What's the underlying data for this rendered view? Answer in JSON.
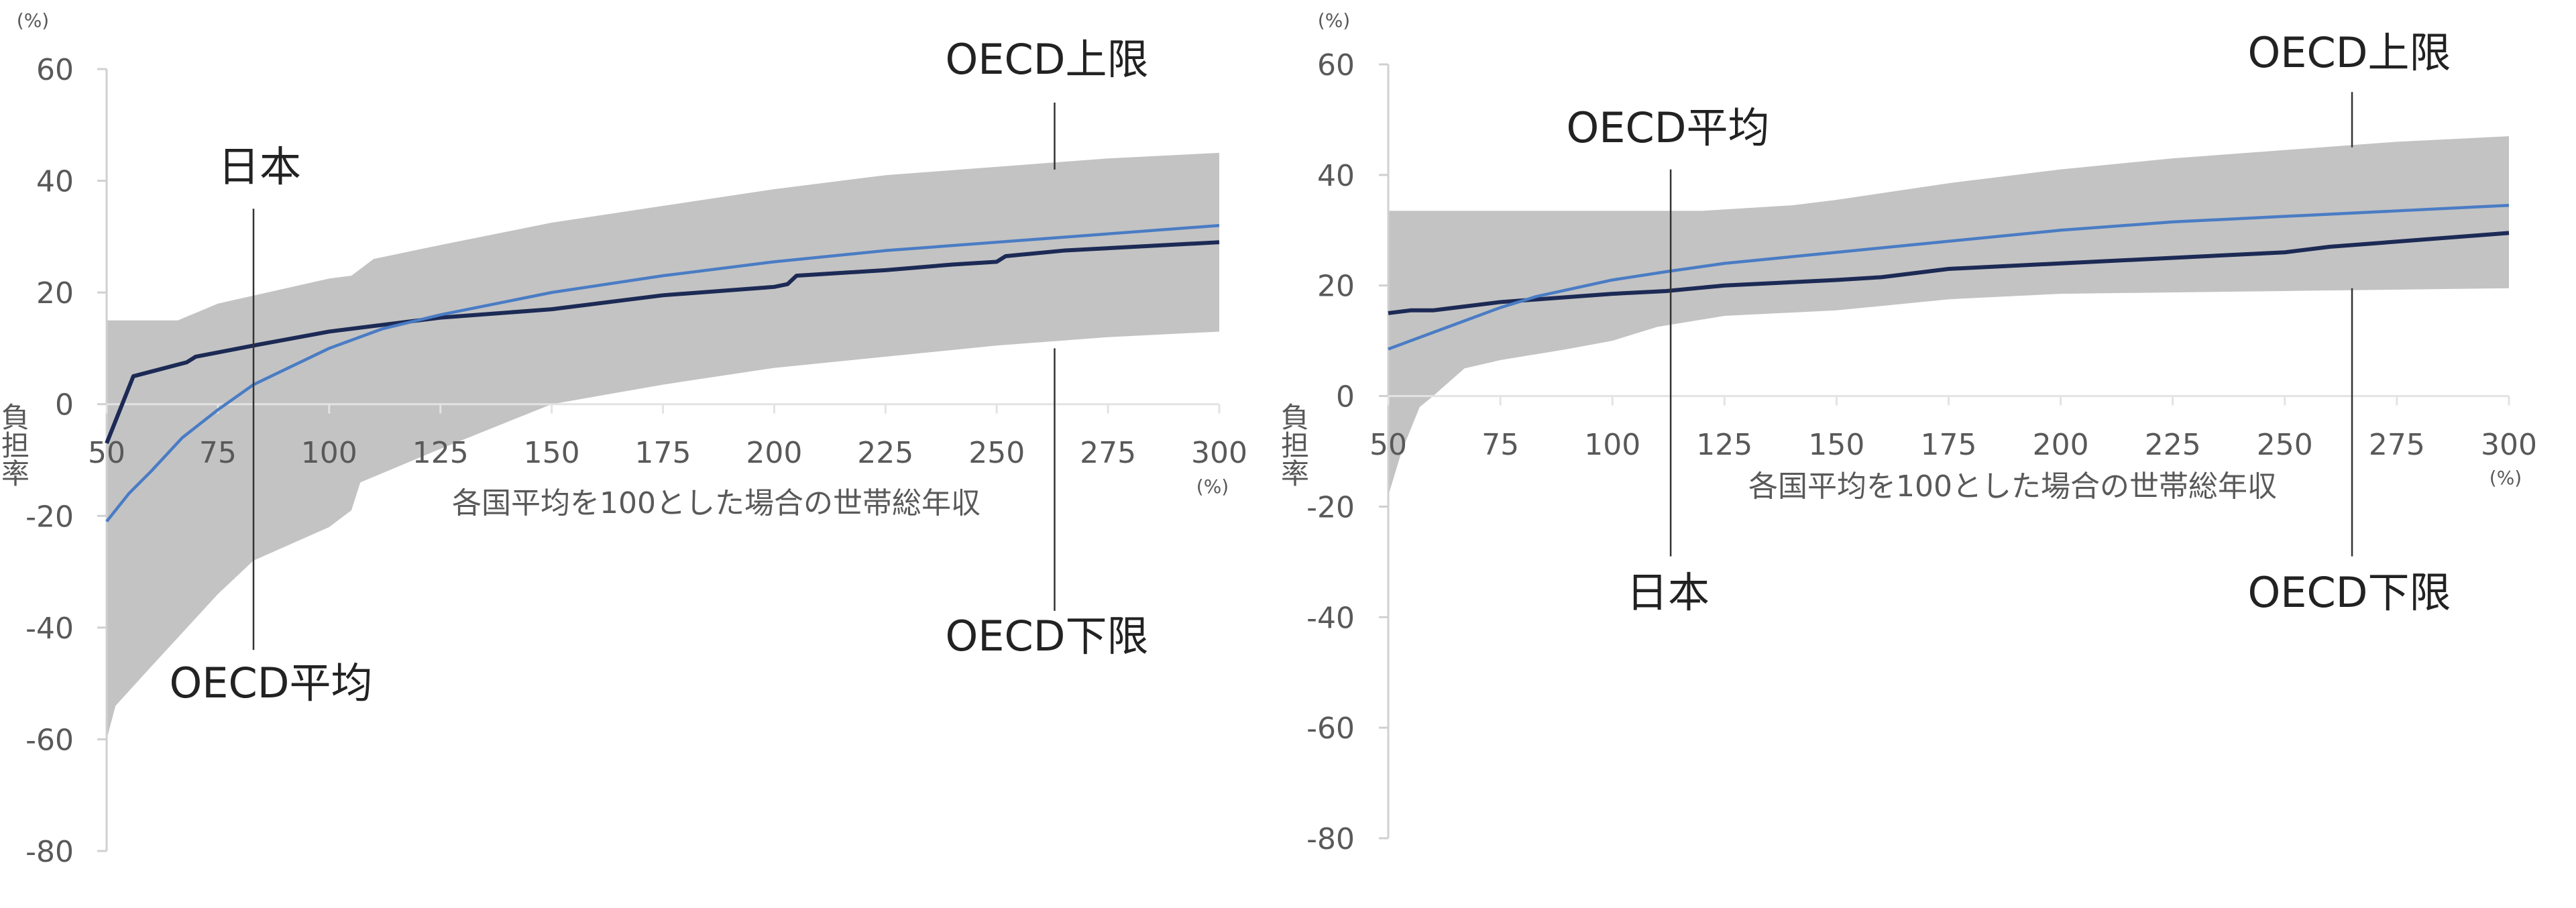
{
  "chart_data": [
    {
      "type": "area",
      "xlabel": "各国平均を100とした場合の世帯総年収",
      "x_unit": "(%)",
      "ylabel": "負担率",
      "y_unit": "(%)",
      "xlim": [
        50,
        300
      ],
      "ylim": [
        -80,
        60
      ],
      "x_ticks": [
        "50",
        "75",
        "100",
        "125",
        "150",
        "175",
        "200",
        "225",
        "250",
        "275",
        "300"
      ],
      "y_ticks": [
        "60",
        "40",
        "20",
        "0",
        "-20",
        "-40",
        "-60",
        "-80"
      ],
      "grid": false,
      "colors": {
        "japan": "#1c2a55",
        "oecd_avg": "#4a7cc4",
        "band": "#c3c3c3"
      },
      "band": {
        "upper": {
          "x": [
            50,
            66,
            75,
            100,
            105,
            110,
            125,
            150,
            175,
            200,
            225,
            250,
            275,
            300
          ],
          "y": [
            15,
            15,
            18,
            22.5,
            23,
            26,
            28.5,
            32.5,
            35.5,
            38.5,
            41,
            42.5,
            44,
            45
          ]
        },
        "lower": {
          "x": [
            50,
            52,
            60,
            75,
            83,
            100,
            105,
            107,
            125,
            150,
            175,
            200,
            225,
            250,
            275,
            300
          ],
          "y": [
            -60,
            -54,
            -47,
            -34,
            -28,
            -22,
            -19,
            -14,
            -8,
            0,
            3.5,
            6.5,
            8.5,
            10.5,
            12,
            13
          ]
        }
      },
      "series": [
        {
          "key": "japan",
          "x": [
            50,
            56,
            68,
            70,
            83,
            100,
            125,
            150,
            160,
            175,
            200,
            203,
            205,
            225,
            240,
            250,
            252,
            265,
            300
          ],
          "y": [
            -7,
            5,
            7.5,
            8.5,
            10.5,
            13,
            15.5,
            17,
            18,
            19.5,
            21,
            21.5,
            23,
            24,
            25,
            25.5,
            26.5,
            27.5,
            29
          ]
        },
        {
          "key": "oecd_avg",
          "x": [
            50,
            55,
            60,
            67,
            75,
            83,
            100,
            112,
            125,
            150,
            175,
            200,
            225,
            250,
            275,
            300
          ],
          "y": [
            -21,
            -16,
            -12,
            -6,
            -1,
            3.5,
            10,
            13.5,
            16,
            20,
            23,
            25.5,
            27.5,
            29,
            30.5,
            32
          ]
        }
      ],
      "annotations": [
        {
          "label": "日本",
          "x": 83,
          "line": [
            35,
            -44
          ]
        },
        {
          "label": "OECD平均",
          "x": 83
        },
        {
          "label": "OECD上限",
          "x": 263,
          "line": [
            54,
            42
          ]
        },
        {
          "label": "OECD下限",
          "x": 263,
          "line": [
            10,
            -37
          ]
        }
      ]
    },
    {
      "type": "area",
      "xlabel": "各国平均を100とした場合の世帯総年収",
      "x_unit": "(%)",
      "ylabel": "負担率",
      "y_unit": "(%)",
      "xlim": [
        50,
        300
      ],
      "ylim": [
        -80,
        60
      ],
      "x_ticks": [
        "50",
        "75",
        "100",
        "125",
        "150",
        "175",
        "200",
        "225",
        "250",
        "275",
        "300"
      ],
      "y_ticks": [
        "60",
        "40",
        "20",
        "0",
        "-20",
        "-40",
        "-60",
        "-80"
      ],
      "grid": false,
      "colors": {
        "japan": "#1c2a55",
        "oecd_avg": "#4a7cc4",
        "band": "#c3c3c3"
      },
      "band": {
        "upper": {
          "x": [
            50,
            120,
            140,
            150,
            175,
            200,
            225,
            250,
            275,
            300
          ],
          "y": [
            33.5,
            33.5,
            34.5,
            35.5,
            38.5,
            41,
            43,
            44.5,
            46,
            47
          ]
        },
        "lower": {
          "x": [
            50,
            53,
            57,
            60,
            67,
            75,
            90,
            100,
            110,
            125,
            150,
            175,
            200,
            250,
            300
          ],
          "y": [
            -18,
            -10,
            -2,
            0,
            5,
            6.5,
            8.5,
            10,
            12.5,
            14.5,
            15.5,
            17.5,
            18.5,
            19,
            19.5
          ]
        }
      },
      "series": [
        {
          "key": "japan",
          "x": [
            50,
            55,
            60,
            75,
            100,
            112,
            125,
            150,
            160,
            175,
            200,
            225,
            250,
            260,
            300
          ],
          "y": [
            15,
            15.5,
            15.5,
            17,
            18.5,
            19,
            20,
            21,
            21.5,
            23,
            24,
            25,
            26,
            27,
            29.5
          ]
        },
        {
          "key": "oecd_avg",
          "x": [
            50,
            60,
            75,
            83,
            100,
            112,
            125,
            150,
            175,
            200,
            225,
            250,
            275,
            300
          ],
          "y": [
            8.5,
            11.5,
            16,
            18,
            21,
            22.5,
            24,
            26,
            28,
            30,
            31.5,
            32.5,
            33.5,
            34.5
          ]
        }
      ],
      "annotations": [
        {
          "label": "OECD平均",
          "x": 113,
          "line": [
            41,
            -29
          ]
        },
        {
          "label": "日本",
          "x": 113
        },
        {
          "label": "OECD上限",
          "x": 265,
          "line": [
            55,
            45
          ]
        },
        {
          "label": "OECD下限",
          "x": 265,
          "line": [
            19.5,
            -29
          ]
        }
      ]
    }
  ]
}
